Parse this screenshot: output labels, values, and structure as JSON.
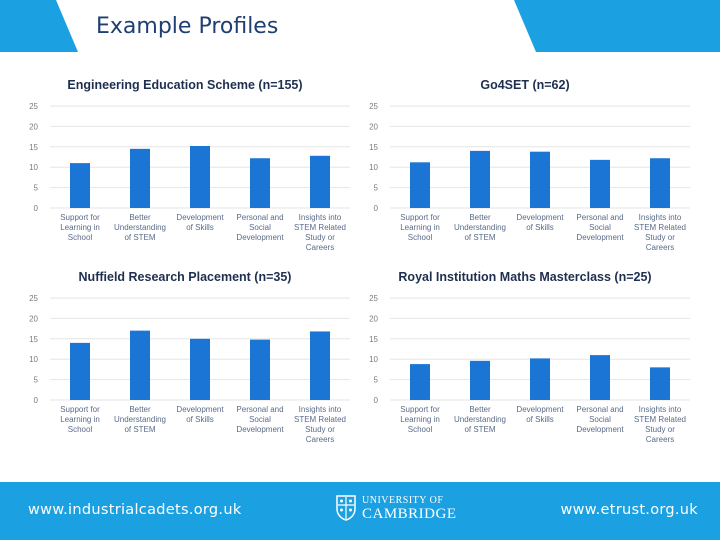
{
  "slide": {
    "title": "Example Profiles",
    "accent_color": "#1ba1e2",
    "bar_color": "#1b75d4"
  },
  "chart_data": [
    {
      "type": "bar",
      "title": "Engineering Education Scheme (n=155)",
      "categories": [
        "Support for Learning in School",
        "Better Understanding of STEM",
        "Development of Skills",
        "Personal and Social Development",
        "Insights into STEM Related Study or Careers"
      ],
      "values": [
        11,
        14.5,
        15.2,
        12.2,
        12.8
      ],
      "yticks": [
        "0",
        "5",
        "10",
        "15",
        "20",
        "25"
      ],
      "ylim": [
        0,
        25
      ],
      "grid": true
    },
    {
      "type": "bar",
      "title": "Go4SET (n=62)",
      "categories": [
        "Support for Learning in School",
        "Better Understanding of STEM",
        "Development of Skills",
        "Personal and Social Development",
        "Insights into STEM Related Study or Careers"
      ],
      "values": [
        11.2,
        14,
        13.8,
        11.8,
        12.2
      ],
      "yticks": [
        "0",
        "5",
        "10",
        "15",
        "20",
        "25"
      ],
      "ylim": [
        0,
        25
      ],
      "grid": true
    },
    {
      "type": "bar",
      "title": "Nuffield Research Placement (n=35)",
      "categories": [
        "Support for Learning in School",
        "Better Understanding of STEM",
        "Development of Skills",
        "Personal and Social Development",
        "Insights into STEM Related Study or Careers"
      ],
      "values": [
        14,
        17,
        15,
        14.8,
        16.8
      ],
      "yticks": [
        "0",
        "5",
        "10",
        "15",
        "20",
        "25"
      ],
      "ylim": [
        0,
        25
      ],
      "grid": true
    },
    {
      "type": "bar",
      "title": "Royal Institution Maths Masterclass (n=25)",
      "categories": [
        "Support for Learning in School",
        "Better Understanding of STEM",
        "Development of Skills",
        "Personal and Social Development",
        "Insights into STEM Related Study or Careers"
      ],
      "values": [
        8.8,
        9.6,
        10.2,
        11,
        8
      ],
      "yticks": [
        "0",
        "5",
        "10",
        "15",
        "20",
        "25"
      ],
      "ylim": [
        0,
        25
      ],
      "grid": true
    }
  ],
  "footer": {
    "left_link": "www.industrialcadets.org.uk",
    "right_link": "www.etrust.org.uk",
    "logo_line1": "UNIVERSITY OF",
    "logo_line2": "CAMBRIDGE"
  }
}
